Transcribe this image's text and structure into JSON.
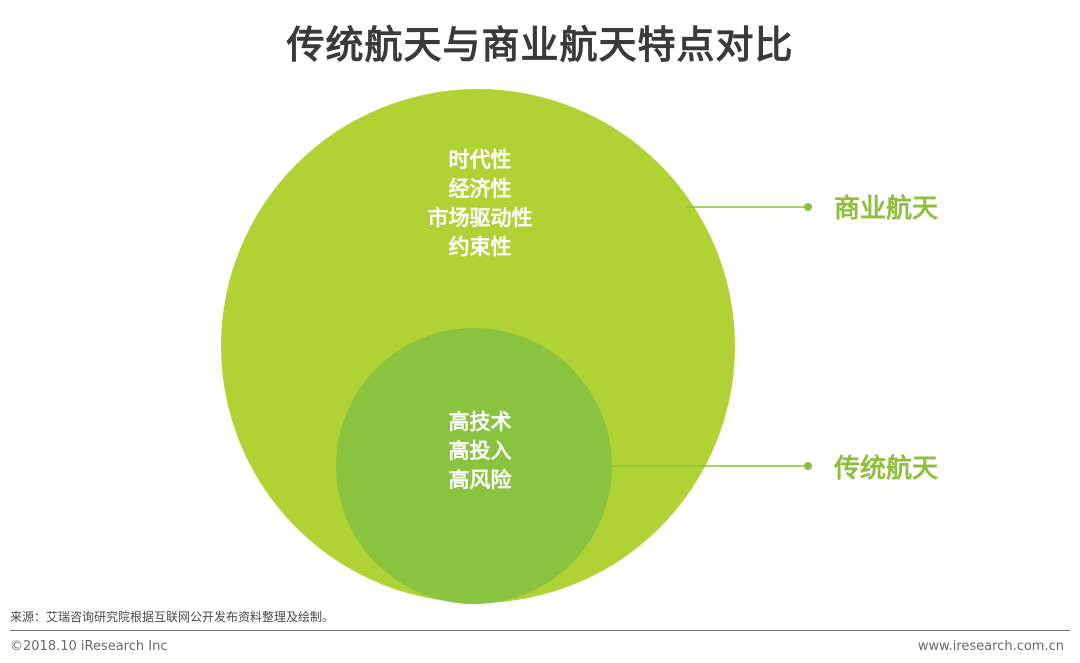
{
  "title": "传统航天与商业航天特点对比",
  "outer_circle": {
    "label": "商业航天",
    "traits": [
      "时代性",
      "经济性",
      "市场驱动性",
      "约束性"
    ],
    "color": "#b1d235"
  },
  "inner_circle": {
    "label": "传统航天",
    "traits": [
      "高技术",
      "高投入",
      "高风险"
    ],
    "color": "#8ac340"
  },
  "label_color": "#8dbe3c",
  "source": "来源：艾瑞咨询研究院根据互联网公开发布资料整理及绘制。",
  "footer": {
    "copyright": "©2018.10 iResearch Inc",
    "website": "www.iresearch.com.cn"
  }
}
